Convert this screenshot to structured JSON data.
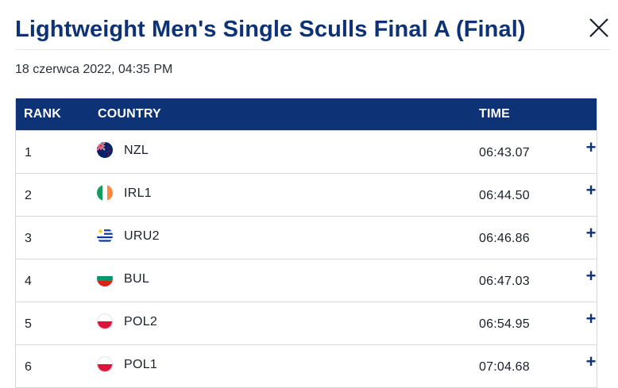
{
  "header": {
    "title": "Lightweight Men's Single Sculls Final A (Final)",
    "close_icon": "close-icon"
  },
  "date": "18 czerwca 2022, 04:35 PM",
  "table": {
    "columns": [
      "RANK",
      "COUNTRY",
      "TIME"
    ],
    "rows": [
      {
        "rank": "1",
        "country": "NZL",
        "time": "06:43.07",
        "flag_icon": "flag-nzl-icon",
        "expand": "+"
      },
      {
        "rank": "2",
        "country": "IRL1",
        "time": "06:44.50",
        "flag_icon": "flag-irl-icon",
        "expand": "+"
      },
      {
        "rank": "3",
        "country": "URU2",
        "time": "06:46.86",
        "flag_icon": "flag-uru-icon",
        "expand": "+"
      },
      {
        "rank": "4",
        "country": "BUL",
        "time": "06:47.03",
        "flag_icon": "flag-bul-icon",
        "expand": "+"
      },
      {
        "rank": "5",
        "country": "POL2",
        "time": "06:54.95",
        "flag_icon": "flag-pol-icon",
        "expand": "+"
      },
      {
        "rank": "6",
        "country": "POL1",
        "time": "07:04.68",
        "flag_icon": "flag-pol-icon",
        "expand": "+"
      }
    ]
  },
  "colors": {
    "brand_navy": "#0d3275",
    "row_border": "#d5d8de"
  }
}
